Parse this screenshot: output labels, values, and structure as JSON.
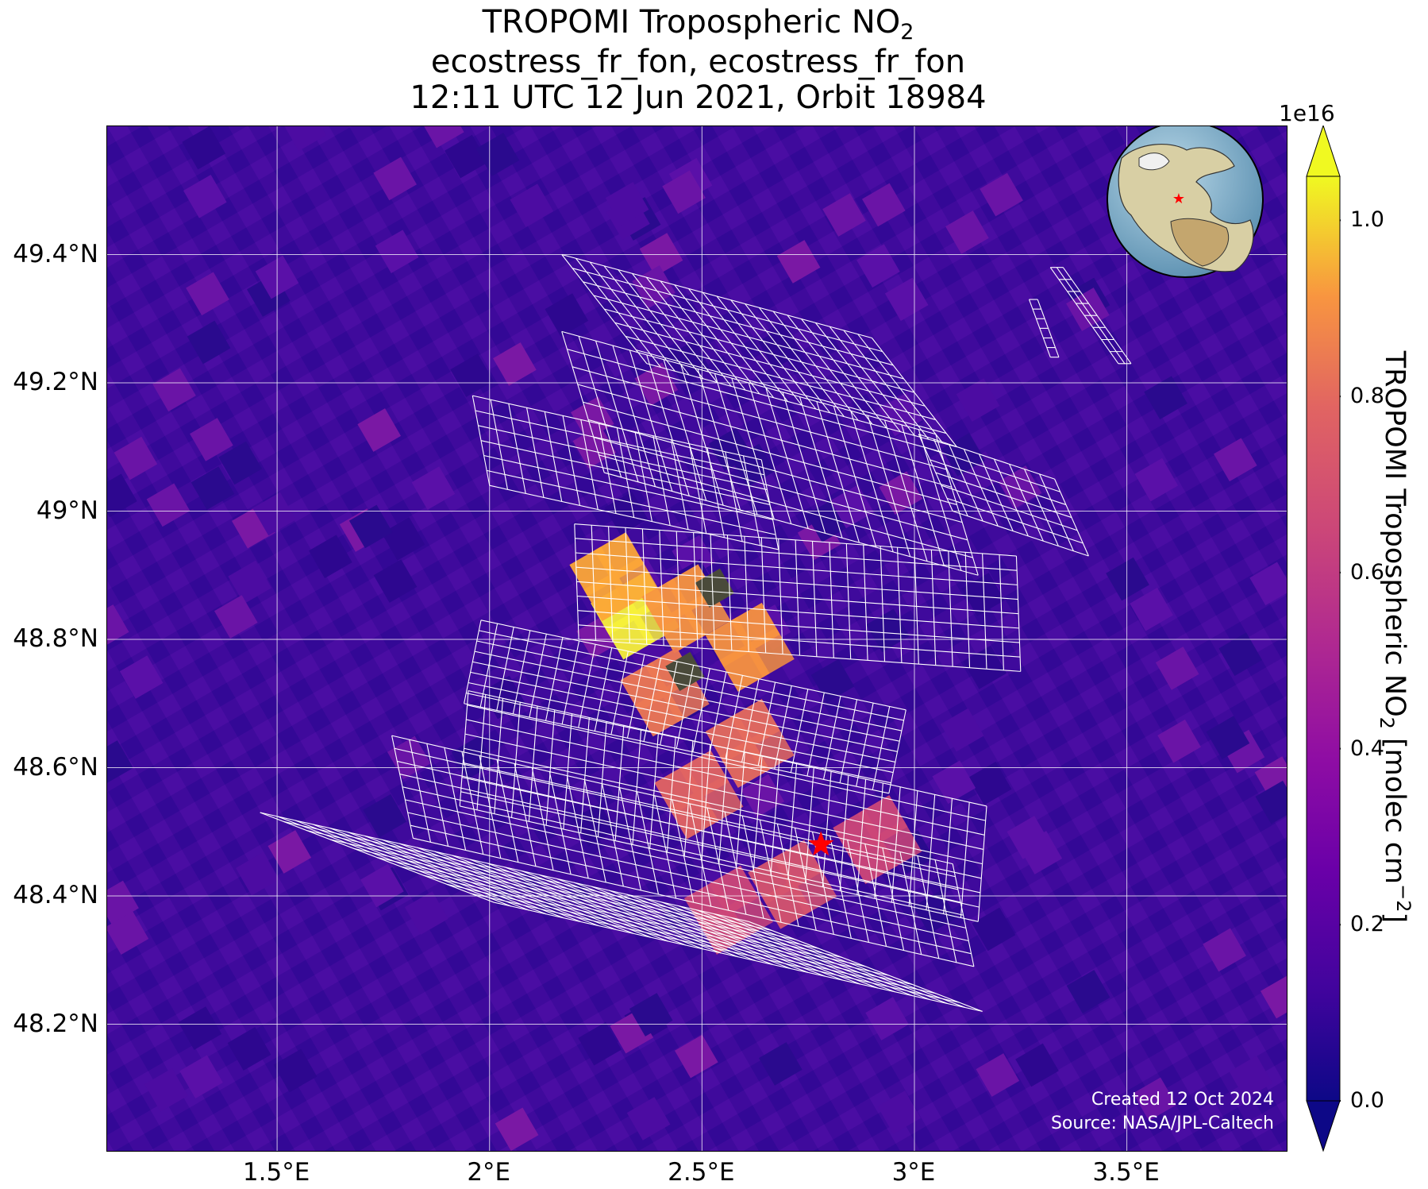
{
  "title": {
    "line1_main": "TROPOMI Tropospheric NO",
    "line1_sub": "2",
    "line2": "ecostress_fr_fon, ecostress_fr_fon",
    "line3": "12:11 UTC 12 Jun 2021, Orbit 18984"
  },
  "map": {
    "extent": {
      "lon_min": 1.1,
      "lon_max": 3.88,
      "lat_min": 48.0,
      "lat_max": 49.6
    },
    "lat_ticks": [
      {
        "value": 49.4,
        "label": "49.4°N"
      },
      {
        "value": 49.2,
        "label": "49.2°N"
      },
      {
        "value": 49.0,
        "label": "49°N"
      },
      {
        "value": 48.8,
        "label": "48.8°N"
      },
      {
        "value": 48.6,
        "label": "48.6°N"
      },
      {
        "value": 48.4,
        "label": "48.4°N"
      },
      {
        "value": 48.2,
        "label": "48.2°N"
      }
    ],
    "lon_ticks": [
      {
        "value": 1.5,
        "label": "1.5°E"
      },
      {
        "value": 2.0,
        "label": "2°E"
      },
      {
        "value": 2.5,
        "label": "2.5°E"
      },
      {
        "value": 3.0,
        "label": "3°E"
      },
      {
        "value": 3.5,
        "label": "3.5°E"
      }
    ],
    "gridlines": true,
    "target_marker": {
      "lon": 2.78,
      "lat": 48.48,
      "symbol": "star",
      "color": "#ff0000"
    },
    "background_color": "#3e0a9a",
    "grid_color": "#ffffff",
    "no2_hotspots": [
      {
        "lon": 2.33,
        "lat": 48.84,
        "value": 1.0,
        "color": "#f7f03a"
      },
      {
        "lon": 2.28,
        "lat": 48.9,
        "value": 0.85,
        "color": "#fca637"
      },
      {
        "lon": 2.45,
        "lat": 48.85,
        "value": 0.78,
        "color": "#f89540"
      },
      {
        "lon": 2.6,
        "lat": 48.79,
        "value": 0.75,
        "color": "#f7923f"
      },
      {
        "lon": 2.4,
        "lat": 48.72,
        "value": 0.65,
        "color": "#ec7853"
      },
      {
        "lon": 2.6,
        "lat": 48.64,
        "value": 0.62,
        "color": "#e56b5d"
      },
      {
        "lon": 2.48,
        "lat": 48.56,
        "value": 0.6,
        "color": "#e16462"
      },
      {
        "lon": 2.7,
        "lat": 48.42,
        "value": 0.55,
        "color": "#d5546e"
      },
      {
        "lon": 2.55,
        "lat": 48.38,
        "value": 0.5,
        "color": "#cc4778"
      },
      {
        "lon": 2.9,
        "lat": 48.49,
        "value": 0.5,
        "color": "#cc4778"
      }
    ],
    "no_data_cells": [
      {
        "lon": 2.53,
        "lat": 48.88,
        "color": "#4a4a3a"
      },
      {
        "lon": 2.46,
        "lat": 48.75,
        "color": "#4a4a3a"
      }
    ],
    "credit_line1": "Created 12 Oct 2024",
    "credit_line2": "Source: NASA/JPL-Caltech"
  },
  "colorbar": {
    "colormap": "plasma",
    "min": 0.0,
    "max": 1.05,
    "extend": "both",
    "exponent_label": "1e16",
    "ticks": [
      {
        "value": 0.0,
        "label": "0.0"
      },
      {
        "value": 0.2,
        "label": "0.2"
      },
      {
        "value": 0.4,
        "label": "0.4"
      },
      {
        "value": 0.6,
        "label": "0.6"
      },
      {
        "value": 0.8,
        "label": "0.8"
      },
      {
        "value": 1.0,
        "label": "1.0"
      }
    ],
    "label_main": "TROPOMI Tropospheric NO",
    "label_sub": "2",
    "label_units": " [molec cm",
    "label_sup": "−2",
    "label_close": "]"
  },
  "inset_globe": {
    "description_marker": "star",
    "marker_color": "#ff0000"
  }
}
